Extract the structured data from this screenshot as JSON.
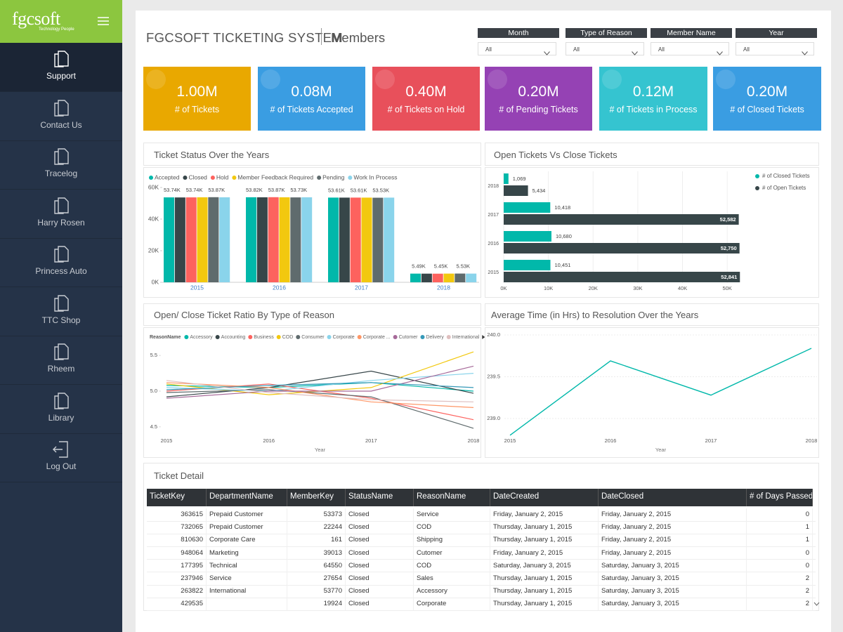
{
  "sidebar": {
    "logo": "fgcsoft",
    "tagline": "Technology People",
    "menu": [
      "Support",
      "Contact Us",
      "Tracelog",
      "Harry Rosen",
      "Princess Auto",
      "TTC Shop",
      "Rheem",
      "Library",
      "Log Out"
    ]
  },
  "header": {
    "title": "FGCSOFT TICKETING SYSTEM",
    "subtitle": "Members"
  },
  "filters": [
    {
      "label": "Month",
      "value": "All"
    },
    {
      "label": "Type of Reason",
      "value": "All"
    },
    {
      "label": "Member Name",
      "value": "All"
    },
    {
      "label": "Year",
      "value": "All"
    }
  ],
  "kpis": [
    {
      "value": "1.00M",
      "label": "# of Tickets",
      "color": "#e9a800"
    },
    {
      "value": "0.08M",
      "label": "# of Tickets Accepted",
      "color": "#3a9de2"
    },
    {
      "value": "0.40M",
      "label": "# of Tickets on Hold",
      "color": "#e8505b"
    },
    {
      "value": "0.20M",
      "label": "# of Pending Tickets",
      "color": "#9542b4"
    },
    {
      "value": "0.12M",
      "label": "# of Tickets in Process",
      "color": "#35c4d0"
    },
    {
      "value": "0.20M",
      "label": "# of Closed Tickets",
      "color": "#3a9de2"
    }
  ],
  "chart_data": [
    {
      "type": "bar",
      "title": "Ticket Status Over the Years",
      "categories": [
        "2015",
        "2016",
        "2017",
        "2018"
      ],
      "ylim": [
        0,
        60000
      ],
      "yticks": [
        {
          "value": 0,
          "label": "0K"
        },
        {
          "value": 20000,
          "label": "20K"
        },
        {
          "value": 40000,
          "label": "40K"
        },
        {
          "value": 60000,
          "label": "60K"
        }
      ],
      "series": [
        {
          "name": "Accepted",
          "color": "#01b8aa",
          "values": [
            53740,
            53820,
            53610,
            5490
          ],
          "value_labels": [
            "53.74K",
            "53.82K",
            "53.61K",
            "5.49K"
          ]
        },
        {
          "name": "Closed",
          "color": "#374649",
          "values": [
            53700,
            53800,
            53600,
            5470
          ],
          "value_labels": [
            null,
            null,
            null,
            null
          ]
        },
        {
          "name": "Hold",
          "color": "#fd625e",
          "values": [
            53740,
            53870,
            53610,
            5450
          ],
          "value_labels": [
            "53.74K",
            "53.87K",
            "53.61K",
            "5.45K"
          ]
        },
        {
          "name": "Member Feedback Required",
          "color": "#f2c80f",
          "values": [
            53800,
            53800,
            53600,
            5500
          ],
          "value_labels": [
            null,
            null,
            null,
            null
          ]
        },
        {
          "name": "Pending",
          "color": "#5f6b6d",
          "values": [
            53870,
            53730,
            53530,
            5530
          ],
          "value_labels": [
            "53.87K",
            "53.73K",
            "53.53K",
            "5.53K"
          ]
        },
        {
          "name": "Work In Process",
          "color": "#8ad4eb",
          "values": [
            53800,
            53800,
            53600,
            5500
          ],
          "value_labels": [
            null,
            null,
            null,
            null
          ]
        }
      ]
    },
    {
      "type": "hbar",
      "title": "Open Tickets Vs Close Tickets",
      "categories": [
        "2018",
        "2017",
        "2016",
        "2015"
      ],
      "xlim": [
        0,
        55000
      ],
      "xticks": [
        {
          "value": 0,
          "label": "0K"
        },
        {
          "value": 10000,
          "label": "10K"
        },
        {
          "value": 20000,
          "label": "20K"
        },
        {
          "value": 30000,
          "label": "30K"
        },
        {
          "value": 40000,
          "label": "40K"
        },
        {
          "value": 50000,
          "label": "50K"
        }
      ],
      "grid": true,
      "series": [
        {
          "name": "# of Closed Tickets",
          "color": "#01b8aa",
          "values": [
            1069,
            10418,
            10680,
            10451
          ],
          "value_labels": [
            "1,069",
            "10,418",
            "10,680",
            "10,451"
          ]
        },
        {
          "name": "# of Open Tickets",
          "color": "#374649",
          "values": [
            5434,
            52582,
            52750,
            52841
          ],
          "value_labels": [
            "5,434",
            "52,582",
            "52,750",
            "52,841"
          ]
        }
      ]
    },
    {
      "type": "line",
      "title": "Open/ Close Ticket Ratio By Type of Reason",
      "x_label": "Year",
      "legend_title": "ReasonName",
      "x": [
        2015,
        2016,
        2017,
        2018
      ],
      "xlim": [
        2015,
        2018
      ],
      "xticks": [
        2015,
        2016,
        2017,
        2018
      ],
      "ylim": [
        4.4,
        5.6
      ],
      "yticks": [
        4.5,
        {
          "value": 5,
          "label": "5.0"
        },
        5.5
      ],
      "series": [
        {
          "name": "Accessory",
          "color": "#01b8aa",
          "values": [
            5.08,
            5.05,
            5.12,
            5.0
          ]
        },
        {
          "name": "Accounting",
          "color": "#374649",
          "values": [
            4.92,
            5.05,
            5.28,
            4.97
          ]
        },
        {
          "name": "Business",
          "color": "#fd625e",
          "values": [
            5.0,
            5.1,
            4.9,
            4.6
          ]
        },
        {
          "name": "COD",
          "color": "#f2c80f",
          "values": [
            5.1,
            4.95,
            5.05,
            5.55
          ]
        },
        {
          "name": "Consumer",
          "color": "#5f6b6d",
          "values": [
            4.98,
            5.02,
            4.92,
            4.48
          ]
        },
        {
          "name": "Corporate",
          "color": "#8ad4eb",
          "values": [
            5.05,
            5.0,
            5.15,
            5.25
          ]
        },
        {
          "name": "Corporate ...",
          "color": "#fe9666",
          "values": [
            5.12,
            5.05,
            4.85,
            4.77
          ]
        },
        {
          "name": "Cutomer",
          "color": "#a66999",
          "values": [
            4.9,
            5.0,
            5.0,
            5.35
          ]
        },
        {
          "name": "Delivery",
          "color": "#3599b8",
          "values": [
            5.02,
            5.08,
            5.12,
            5.05
          ]
        },
        {
          "name": "International",
          "color": "#dfbfbf",
          "values": [
            5.15,
            4.98,
            4.88,
            4.85
          ]
        }
      ]
    },
    {
      "type": "line",
      "title": "Average Time (in Hrs) to Resolution Over the Years",
      "x_label": "Year",
      "x": [
        2015,
        2016,
        2017,
        2018
      ],
      "xlim": [
        2015,
        2018
      ],
      "xticks": [
        2015,
        2016,
        2017,
        2018
      ],
      "ylim": [
        238.75,
        240.05
      ],
      "yticks": [
        {
          "value": 239,
          "label": "239.0"
        },
        239.5,
        {
          "value": 240,
          "label": "240.0"
        }
      ],
      "grid": true,
      "color": "#01b8aa",
      "values": [
        238.8,
        239.69,
        239.28,
        239.84
      ]
    }
  ],
  "table": {
    "title": "Ticket Detail",
    "columns": [
      "TicketKey",
      "DepartmentName",
      "MemberKey",
      "StatusName",
      "ReasonName",
      "DateCreated",
      "DateClosed",
      "# of Days Passed"
    ],
    "rows": [
      [
        363615,
        "Prepaid Customer",
        53373,
        "Closed",
        "Service",
        "Friday, January 2, 2015",
        "Friday, January 2, 2015",
        0
      ],
      [
        732065,
        "Prepaid Customer",
        22244,
        "Closed",
        "COD",
        "Thursday, January 1, 2015",
        "Friday, January 2, 2015",
        1
      ],
      [
        810630,
        "Corporate Care",
        161,
        "Closed",
        "Shipping",
        "Thursday, January 1, 2015",
        "Friday, January 2, 2015",
        1
      ],
      [
        948064,
        "Marketing",
        39013,
        "Closed",
        "Cutomer",
        "Friday, January 2, 2015",
        "Friday, January 2, 2015",
        0
      ],
      [
        177395,
        "Technical",
        64550,
        "Closed",
        "COD",
        "Saturday, January 3, 2015",
        "Saturday, January 3, 2015",
        0
      ],
      [
        237946,
        "Service",
        27654,
        "Closed",
        "Sales",
        "Thursday, January 1, 2015",
        "Saturday, January 3, 2015",
        2
      ],
      [
        263822,
        "International",
        53770,
        "Closed",
        "Accessory",
        "Thursday, January 1, 2015",
        "Saturday, January 3, 2015",
        2
      ],
      [
        429535,
        null,
        19924,
        "Closed",
        "Corporate",
        "Thursday, January 1, 2015",
        "Saturday, January 3, 2015",
        2
      ]
    ]
  }
}
